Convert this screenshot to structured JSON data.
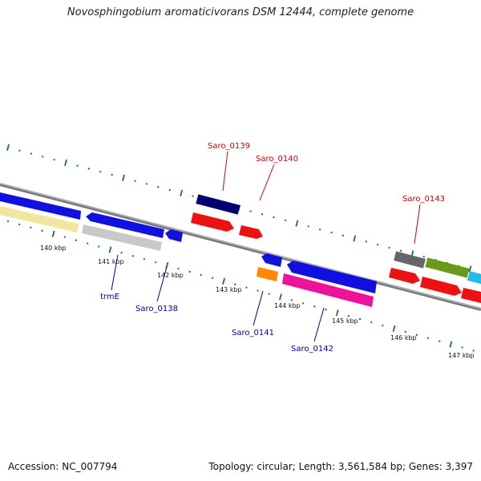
{
  "header": {
    "title": "Novosphingobium aromaticivorans DSM 12444, complete genome"
  },
  "footer": {
    "accession": "Accession: NC_007794",
    "info": "Topology: circular; Length: 3,561,584 bp; Genes: 3,397"
  },
  "colors": {
    "backbone": "#888888",
    "tick": "#1a7a1a",
    "blue": "#1010e0",
    "red": "#ee1111",
    "navy": "#000070",
    "gray_dark": "#666666",
    "gray_light": "#c8c8c8",
    "olive": "#6a9a1a",
    "cyan": "#22bbee",
    "orange": "#ff8800",
    "magenta": "#ee1199",
    "khaki": "#f0e6a0"
  },
  "kbp_labels": [
    "140 kbp",
    "141 kbp",
    "142 kbp",
    "143 kbp",
    "144 kbp",
    "145 kbp",
    "146 kbp",
    "147 kbp"
  ],
  "gene_labels": {
    "saro_0139": "Saro_0139",
    "saro_0140": "Saro_0140",
    "saro_0143": "Saro_0143",
    "trmE": "trmE",
    "saro_0138": "Saro_0138",
    "saro_0141": "Saro_0141",
    "saro_0142": "Saro_0142"
  }
}
